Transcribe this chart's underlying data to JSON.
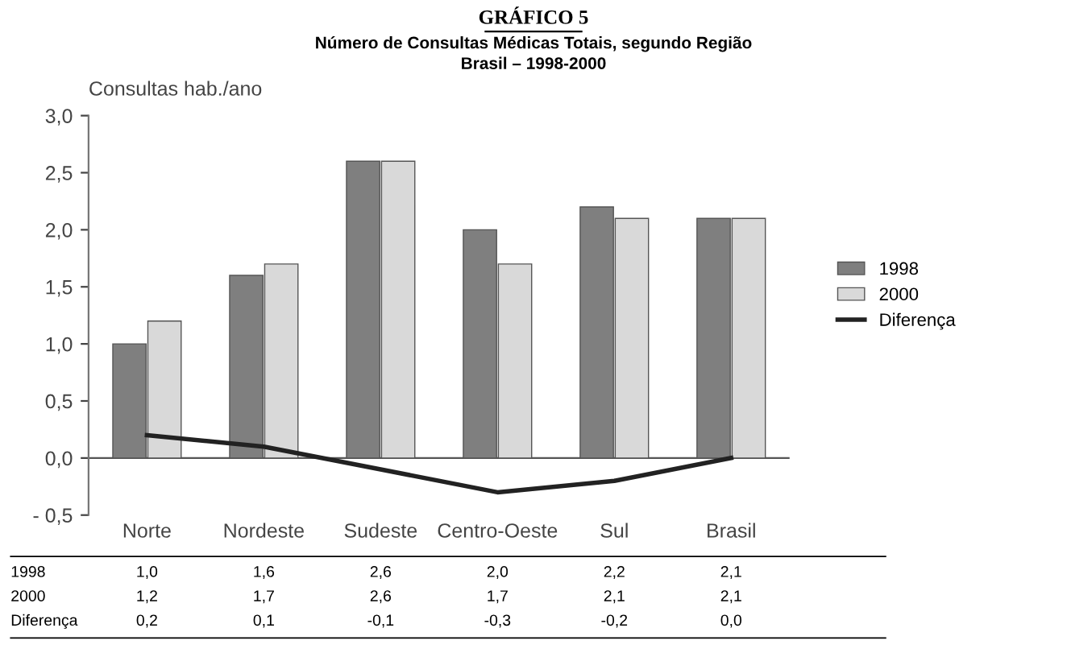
{
  "chart_data": {
    "type": "bar",
    "title": "GRÁFICO 5",
    "subtitle": "Número de Consultas Médicas Totais, segundo Região\nBrasil – 1998-2000",
    "ylabel": "Consultas hab./ano",
    "categories": [
      "Norte",
      "Nordeste",
      "Sudeste",
      "Centro-Oeste",
      "Sul",
      "Brasil"
    ],
    "series": [
      {
        "name": "1998",
        "color": "#7f7f7f",
        "values": [
          1.0,
          1.6,
          2.6,
          2.0,
          2.2,
          2.1
        ],
        "value_labels": [
          "1,0",
          "1,6",
          "2,6",
          "2,0",
          "2,2",
          "2,1"
        ]
      },
      {
        "name": "2000",
        "color": "#d9d9d9",
        "values": [
          1.2,
          1.7,
          2.6,
          1.7,
          2.1,
          2.1
        ],
        "value_labels": [
          "1,2",
          "1,7",
          "2,6",
          "1,7",
          "2,1",
          "2,1"
        ]
      },
      {
        "name": "Diferença",
        "type": "line",
        "color": "#222222",
        "values": [
          0.2,
          0.1,
          -0.1,
          -0.3,
          -0.2,
          0.0
        ],
        "value_labels": [
          "0,2",
          "0,1",
          "-0,1",
          "-0,3",
          "-0,2",
          "0,0"
        ]
      }
    ],
    "ylim": [
      -0.5,
      3.0
    ],
    "yticks": [
      {
        "value": -0.5,
        "label": "- 0,5"
      },
      {
        "value": 0.0,
        "label": "0,0"
      },
      {
        "value": 0.5,
        "label": "0,5"
      },
      {
        "value": 1.0,
        "label": "1,0"
      },
      {
        "value": 1.5,
        "label": "1,5"
      },
      {
        "value": 2.0,
        "label": "2,0"
      },
      {
        "value": 2.5,
        "label": "2,5"
      },
      {
        "value": 3.0,
        "label": "3,0"
      }
    ],
    "ref_lines": [
      {
        "axis": "y",
        "value": 0.0,
        "label": null,
        "color": "#555555"
      }
    ],
    "legend": "right",
    "grid": false,
    "marker": "none",
    "line_style": "solid"
  }
}
